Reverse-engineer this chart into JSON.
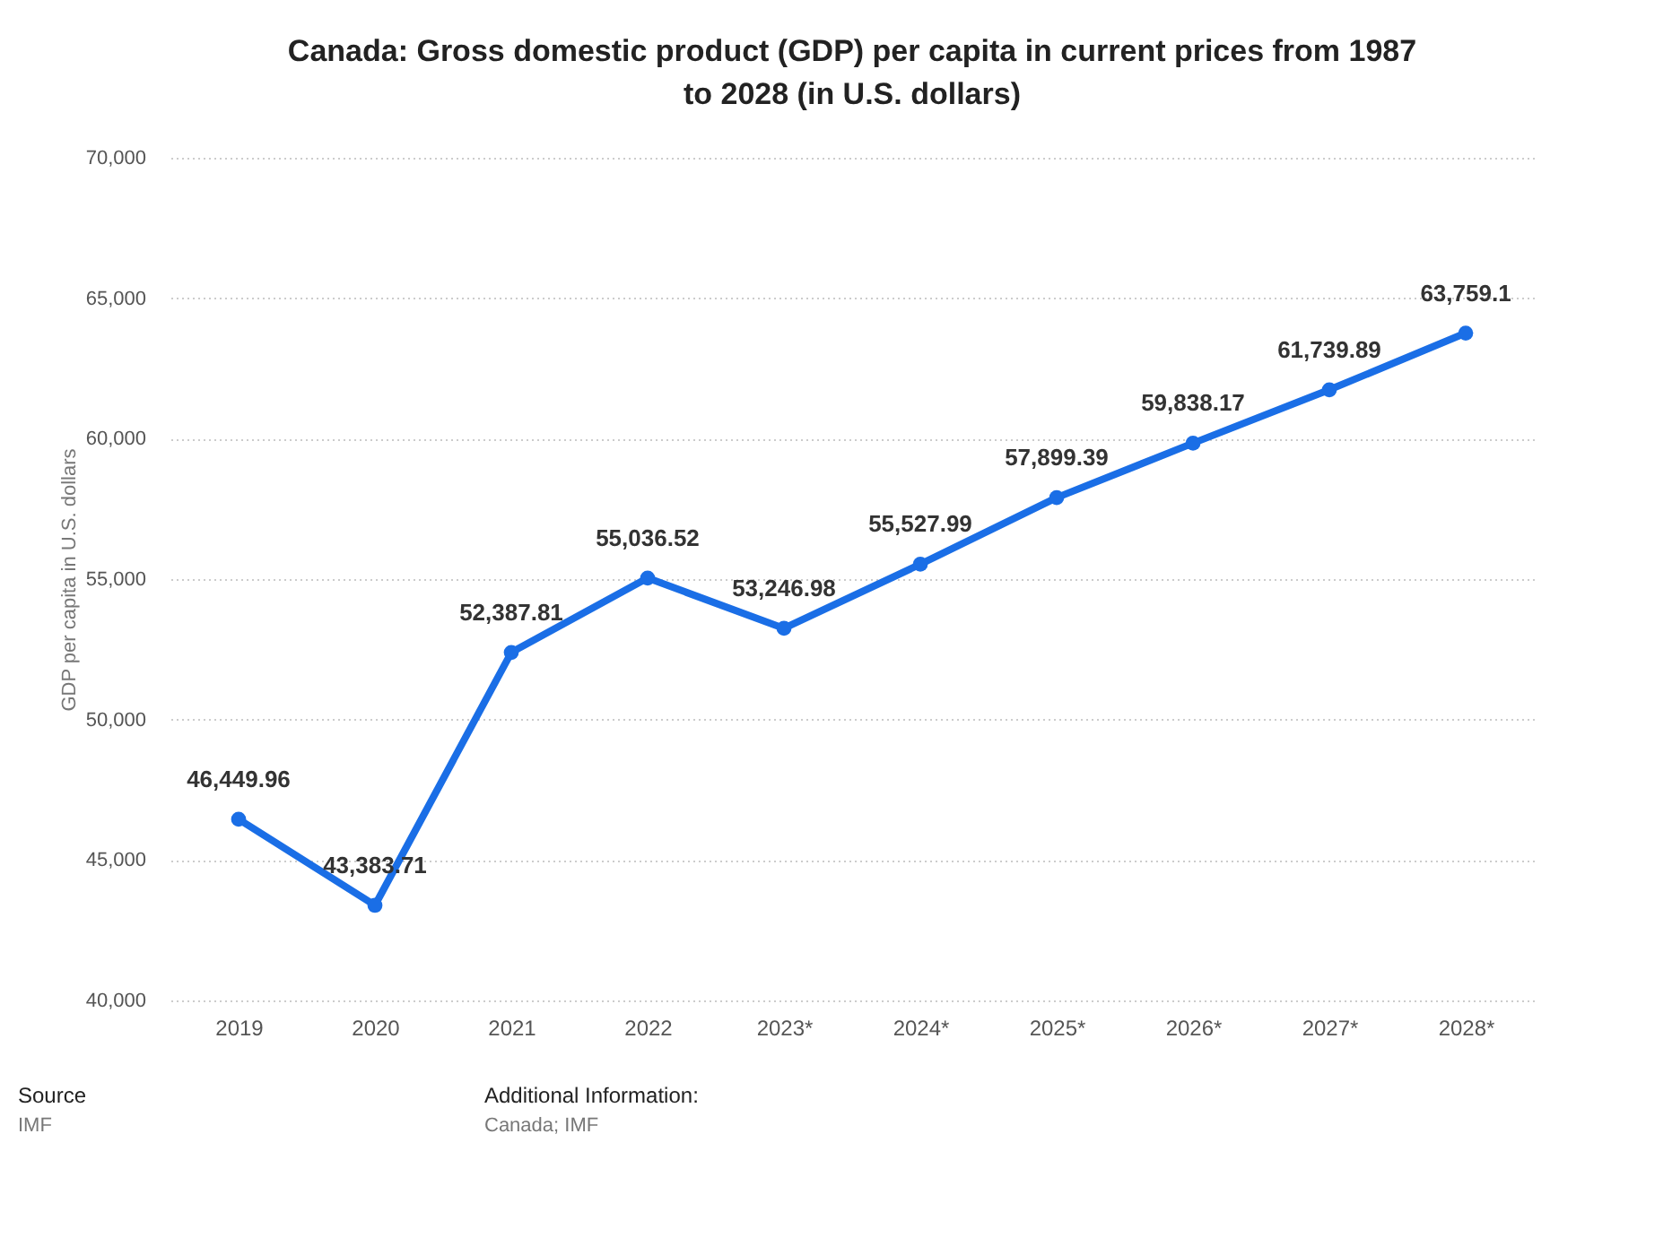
{
  "chart_data": {
    "type": "line",
    "title": "Canada: Gross domestic product (GDP) per capita in current prices from 1987 to 2028 (in U.S. dollars)",
    "ylabel": "GDP per capita in U.S. dollars",
    "categories": [
      "2019",
      "2020",
      "2021",
      "2022",
      "2023*",
      "2024*",
      "2025*",
      "2026*",
      "2027*",
      "2028*"
    ],
    "series": [
      {
        "color": "#1a6ee6",
        "values": [
          46449.96,
          43383.71,
          52387.81,
          55036.52,
          53246.98,
          55527.99,
          57899.39,
          59838.17,
          61739.89,
          63759.1
        ]
      }
    ],
    "value_labels": [
      "46,449.96",
      "43,383.71",
      "52,387.81",
      "55,036.52",
      "53,246.98",
      "55,527.99",
      "57,899.39",
      "59,838.17",
      "61,739.89",
      "63,759.1"
    ],
    "ylim": [
      40000,
      70000
    ],
    "yticks": [
      {
        "value": 40000,
        "label": "40,000"
      },
      {
        "value": 45000,
        "label": "45,000"
      },
      {
        "value": 50000,
        "label": "50,000"
      },
      {
        "value": 55000,
        "label": "55,000"
      },
      {
        "value": 60000,
        "label": "60,000"
      },
      {
        "value": 65000,
        "label": "65,000"
      },
      {
        "value": 70000,
        "label": "70,000"
      }
    ],
    "grid": "y",
    "marker": "circle",
    "line_style": "solid",
    "legend": false,
    "annotations": [
      "Source",
      "IMF",
      "Additional Information:",
      "Canada; IMF"
    ]
  }
}
